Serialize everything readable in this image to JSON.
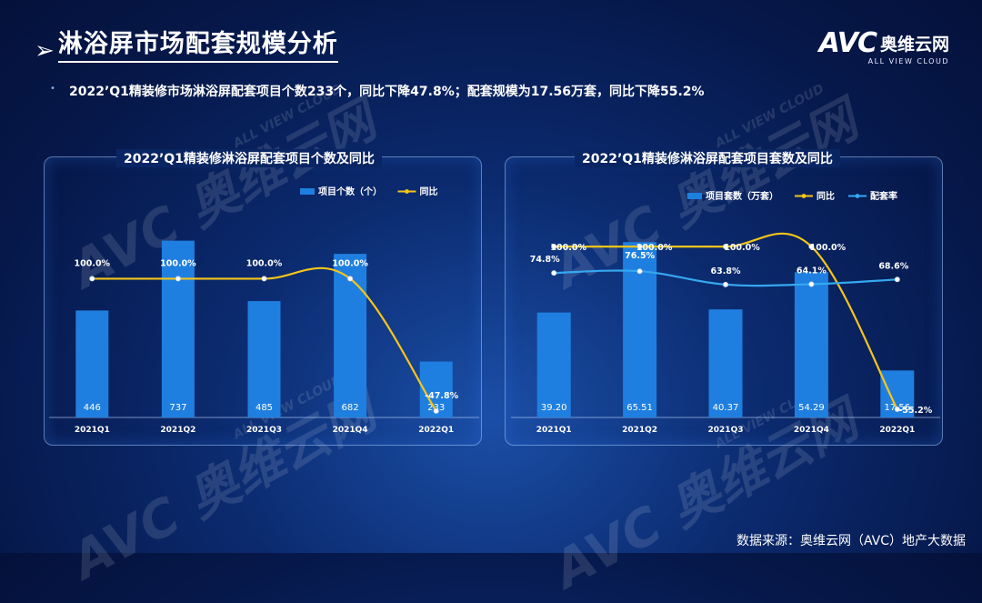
{
  "page": {
    "title": "淋浴屏市场配套规模分析",
    "bullet": "2022’Q1精装修市场淋浴屏配套项目个数233个，同比下降47.8%；配套规模为17.56万套，同比下降55.2%",
    "logo_main": "AVC",
    "logo_cn": "奥维云网",
    "logo_sub": "ALL VIEW CLOUD",
    "source": "数据来源：奥维云网（AVC）地产大数据",
    "watermark_main": "AVC 奥维云网",
    "watermark_sub": "ALL VIEW CLOUD"
  },
  "colors": {
    "bar": "#1f7fe0",
    "yoy_line": "#f5c518",
    "ratio_line": "#35a8f0"
  },
  "chart_data": [
    {
      "type": "bar",
      "title": "2022’Q1精装修淋浴屏配套项目个数及同比",
      "categories": [
        "2021Q1",
        "2021Q2",
        "2021Q3",
        "2021Q4",
        "2022Q1"
      ],
      "series": [
        {
          "name": "项目个数（个）",
          "type": "bar",
          "values": [
            446,
            737,
            485,
            682,
            233
          ],
          "labels": [
            "446",
            "737",
            "485",
            "682",
            "233"
          ]
        },
        {
          "name": "同比",
          "type": "line",
          "values": [
            100.0,
            100.0,
            100.0,
            100.0,
            -47.8
          ],
          "labels": [
            "100.0%",
            "100.0%",
            "100.0%",
            "100.0%",
            "-47.8%"
          ]
        }
      ],
      "bar_ylim": [
        0,
        800
      ],
      "line_ylim": [
        -55,
        200
      ]
    },
    {
      "type": "bar",
      "title": "2022’Q1精装修淋浴屏配套项目套数及同比",
      "categories": [
        "2021Q1",
        "2021Q2",
        "2021Q3",
        "2021Q4",
        "2022Q1"
      ],
      "series": [
        {
          "name": "项目套数（万套）",
          "type": "bar",
          "values": [
            39.2,
            65.51,
            40.37,
            54.29,
            17.56
          ],
          "labels": [
            "39.20",
            "65.51",
            "40.37",
            "54.29",
            "17.56"
          ]
        },
        {
          "name": "同比",
          "type": "line",
          "values": [
            100.0,
            100.0,
            100.0,
            100.0,
            -55.2
          ],
          "labels": [
            "100.0%",
            "100.0%",
            "100.0%",
            "100.0%",
            "-55.2%"
          ]
        },
        {
          "name": "配套率",
          "type": "line",
          "values": [
            74.8,
            76.5,
            63.8,
            64.1,
            68.6
          ],
          "labels": [
            "74.8%",
            "76.5%",
            "63.8%",
            "64.1%",
            "68.6%"
          ]
        }
      ],
      "bar_ylim": [
        0,
        70
      ],
      "line_ylim": [
        -63,
        140
      ]
    }
  ]
}
